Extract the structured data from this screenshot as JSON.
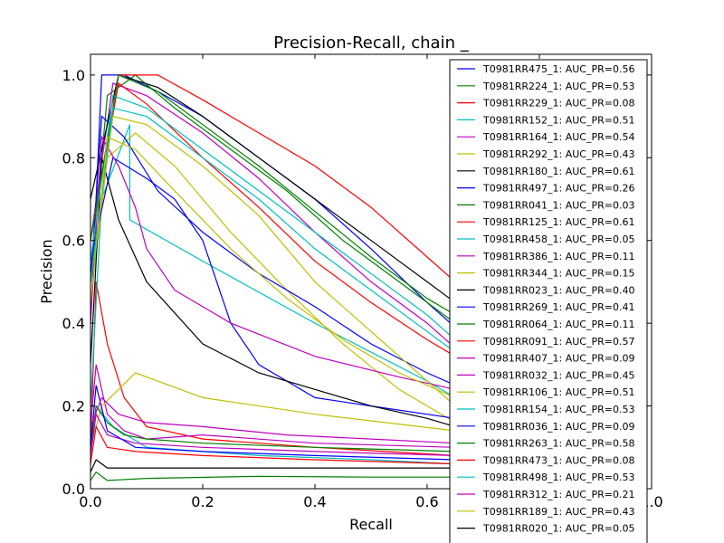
{
  "chart_data": {
    "type": "line",
    "title": "Precision-Recall, chain _",
    "xlabel": "Recall",
    "ylabel": "Precision",
    "xlim": [
      0.0,
      1.0
    ],
    "ylim": [
      0.0,
      1.05
    ],
    "xticks": [
      "0.0",
      "0.2",
      "0.4",
      "0.6",
      "0.8",
      "1.0"
    ],
    "yticks": [
      "0.0",
      "0.2",
      "0.4",
      "0.6",
      "0.8",
      "1.0"
    ],
    "grid": false,
    "legend_position": "top-right",
    "series": [
      {
        "name": "T0981RR475_1: AUC_PR=0.56",
        "color": "#0000ff",
        "x": [
          0.0,
          0.02,
          0.06,
          0.12,
          0.2,
          0.3,
          0.4,
          0.5,
          0.6,
          0.65
        ],
        "y": [
          0.4,
          1.0,
          1.0,
          0.96,
          0.9,
          0.8,
          0.7,
          0.58,
          0.45,
          0.39
        ]
      },
      {
        "name": "T0981RR224_1: AUC_PR=0.53",
        "color": "#008000",
        "x": [
          0.0,
          0.03,
          0.08,
          0.15,
          0.25,
          0.35,
          0.45,
          0.55,
          0.65
        ],
        "y": [
          0.5,
          0.95,
          1.0,
          0.92,
          0.82,
          0.72,
          0.6,
          0.5,
          0.4
        ]
      },
      {
        "name": "T0981RR229_1: AUC_PR=0.08",
        "color": "#ff0000",
        "x": [
          0.0,
          0.01,
          0.03,
          0.06,
          0.1,
          0.2,
          0.4,
          0.65
        ],
        "y": [
          0.1,
          0.5,
          0.35,
          0.22,
          0.15,
          0.12,
          0.1,
          0.08
        ]
      },
      {
        "name": "T0981RR152_1: AUC_PR=0.51",
        "color": "#00bfbf",
        "x": [
          0.0,
          0.02,
          0.07,
          0.07,
          0.2,
          0.4,
          0.6,
          0.65
        ],
        "y": [
          0.2,
          0.7,
          0.88,
          0.65,
          0.55,
          0.4,
          0.26,
          0.22
        ]
      },
      {
        "name": "T0981RR164_1: AUC_PR=0.54",
        "color": "#bf00bf",
        "x": [
          0.0,
          0.04,
          0.1,
          0.2,
          0.3,
          0.4,
          0.5,
          0.6,
          0.65
        ],
        "y": [
          0.6,
          0.98,
          0.95,
          0.86,
          0.75,
          0.62,
          0.5,
          0.4,
          0.34
        ]
      },
      {
        "name": "T0981RR292_1: AUC_PR=0.43",
        "color": "#bfbf00",
        "x": [
          0.0,
          0.03,
          0.08,
          0.15,
          0.25,
          0.35,
          0.45,
          0.55,
          0.65
        ],
        "y": [
          0.45,
          0.8,
          0.86,
          0.78,
          0.62,
          0.48,
          0.35,
          0.24,
          0.16
        ]
      },
      {
        "name": "T0981RR180_1: AUC_PR=0.61",
        "color": "#000000",
        "x": [
          0.0,
          0.05,
          0.12,
          0.2,
          0.3,
          0.4,
          0.5,
          0.6,
          0.65
        ],
        "y": [
          0.7,
          1.0,
          0.97,
          0.9,
          0.8,
          0.7,
          0.6,
          0.5,
          0.45
        ]
      },
      {
        "name": "T0981RR497_1: AUC_PR=0.26",
        "color": "#0000ff",
        "x": [
          0.0,
          0.04,
          0.1,
          0.15,
          0.2,
          0.25,
          0.3,
          0.4,
          0.5,
          0.65
        ],
        "y": [
          0.55,
          0.8,
          0.75,
          0.7,
          0.6,
          0.4,
          0.3,
          0.22,
          0.2,
          0.17
        ]
      },
      {
        "name": "T0981RR041_1: AUC_PR=0.03",
        "color": "#008000",
        "x": [
          0.0,
          0.01,
          0.03,
          0.1,
          0.3,
          0.5,
          0.65
        ],
        "y": [
          0.02,
          0.04,
          0.02,
          0.025,
          0.03,
          0.028,
          0.028
        ]
      },
      {
        "name": "T0981RR125_1: AUC_PR=0.61",
        "color": "#ff0000",
        "x": [
          0.0,
          0.05,
          0.12,
          0.2,
          0.3,
          0.4,
          0.5,
          0.6,
          0.65
        ],
        "y": [
          0.6,
          1.0,
          1.0,
          0.94,
          0.86,
          0.78,
          0.68,
          0.56,
          0.5
        ]
      },
      {
        "name": "T0981RR458_1: AUC_PR=0.05",
        "color": "#00bfbf",
        "x": [
          0.0,
          0.01,
          0.04,
          0.1,
          0.3,
          0.5,
          0.65
        ],
        "y": [
          0.08,
          0.2,
          0.15,
          0.1,
          0.08,
          0.07,
          0.06
        ]
      },
      {
        "name": "T0981RR386_1: AUC_PR=0.11",
        "color": "#bf00bf",
        "x": [
          0.0,
          0.01,
          0.03,
          0.06,
          0.1,
          0.2,
          0.4,
          0.65
        ],
        "y": [
          0.15,
          0.3,
          0.18,
          0.14,
          0.12,
          0.13,
          0.11,
          0.1
        ]
      },
      {
        "name": "T0981RR344_1: AUC_PR=0.15",
        "color": "#bfbf00",
        "x": [
          0.0,
          0.02,
          0.05,
          0.08,
          0.12,
          0.2,
          0.4,
          0.65
        ],
        "y": [
          0.1,
          0.2,
          0.24,
          0.28,
          0.26,
          0.22,
          0.18,
          0.14
        ]
      },
      {
        "name": "T0981RR023_1: AUC_PR=0.40",
        "color": "#000000",
        "x": [
          0.0,
          0.02,
          0.05,
          0.1,
          0.2,
          0.3,
          0.4,
          0.5,
          0.6,
          0.65
        ],
        "y": [
          0.3,
          0.8,
          0.65,
          0.5,
          0.35,
          0.28,
          0.24,
          0.2,
          0.17,
          0.15
        ]
      },
      {
        "name": "T0981RR269_1: AUC_PR=0.41",
        "color": "#0000ff",
        "x": [
          0.0,
          0.02,
          0.06,
          0.12,
          0.2,
          0.3,
          0.4,
          0.5,
          0.6,
          0.65
        ],
        "y": [
          0.5,
          0.9,
          0.85,
          0.72,
          0.62,
          0.52,
          0.44,
          0.35,
          0.28,
          0.25
        ]
      },
      {
        "name": "T0981RR064_1: AUC_PR=0.11",
        "color": "#008000",
        "x": [
          0.0,
          0.01,
          0.03,
          0.06,
          0.1,
          0.2,
          0.4,
          0.65
        ],
        "y": [
          0.1,
          0.2,
          0.16,
          0.13,
          0.12,
          0.11,
          0.1,
          0.09
        ]
      },
      {
        "name": "T0981RR091_1: AUC_PR=0.57",
        "color": "#ff0000",
        "x": [
          0.0,
          0.05,
          0.1,
          0.2,
          0.3,
          0.4,
          0.5,
          0.6,
          0.65
        ],
        "y": [
          0.6,
          0.98,
          0.93,
          0.8,
          0.68,
          0.55,
          0.45,
          0.36,
          0.32
        ]
      },
      {
        "name": "T0981RR407_1: AUC_PR=0.09",
        "color": "#bf00bf",
        "x": [
          0.0,
          0.01,
          0.03,
          0.08,
          0.2,
          0.4,
          0.65
        ],
        "y": [
          0.08,
          0.18,
          0.13,
          0.11,
          0.1,
          0.09,
          0.08
        ]
      },
      {
        "name": "T0981RR032_1: AUC_PR=0.45",
        "color": "#bf00bf",
        "x": [
          0.0,
          0.02,
          0.05,
          0.08,
          0.1,
          0.15,
          0.25,
          0.4,
          0.55,
          0.65
        ],
        "y": [
          0.4,
          0.85,
          0.78,
          0.68,
          0.58,
          0.48,
          0.4,
          0.32,
          0.27,
          0.24
        ]
      },
      {
        "name": "T0981RR106_1: AUC_PR=0.51",
        "color": "#bfbf00",
        "x": [
          0.0,
          0.04,
          0.1,
          0.2,
          0.3,
          0.4,
          0.5,
          0.6,
          0.65
        ],
        "y": [
          0.5,
          0.9,
          0.88,
          0.78,
          0.66,
          0.5,
          0.38,
          0.26,
          0.2
        ]
      },
      {
        "name": "T0981RR154_1: AUC_PR=0.53",
        "color": "#00bfbf",
        "x": [
          0.0,
          0.04,
          0.1,
          0.2,
          0.3,
          0.4,
          0.5,
          0.6,
          0.65
        ],
        "y": [
          0.55,
          0.95,
          0.92,
          0.82,
          0.72,
          0.62,
          0.52,
          0.42,
          0.36
        ]
      },
      {
        "name": "T0981RR036_1: AUC_PR=0.09",
        "color": "#0000ff",
        "x": [
          0.0,
          0.01,
          0.03,
          0.08,
          0.2,
          0.4,
          0.65
        ],
        "y": [
          0.1,
          0.25,
          0.14,
          0.1,
          0.09,
          0.08,
          0.07
        ]
      },
      {
        "name": "T0981RR263_1: AUC_PR=0.58",
        "color": "#008000",
        "x": [
          0.0,
          0.05,
          0.12,
          0.2,
          0.3,
          0.4,
          0.5,
          0.6,
          0.65
        ],
        "y": [
          0.6,
          1.0,
          0.96,
          0.88,
          0.78,
          0.67,
          0.56,
          0.46,
          0.42
        ]
      },
      {
        "name": "T0981RR473_1: AUC_PR=0.08",
        "color": "#ff0000",
        "x": [
          0.0,
          0.01,
          0.03,
          0.08,
          0.2,
          0.4,
          0.65
        ],
        "y": [
          0.06,
          0.15,
          0.1,
          0.09,
          0.08,
          0.07,
          0.06
        ]
      },
      {
        "name": "T0981RR498_1: AUC_PR=0.53",
        "color": "#00bfbf",
        "x": [
          0.0,
          0.04,
          0.1,
          0.2,
          0.3,
          0.4,
          0.5,
          0.6,
          0.65
        ],
        "y": [
          0.5,
          0.92,
          0.9,
          0.8,
          0.7,
          0.58,
          0.48,
          0.38,
          0.33
        ]
      },
      {
        "name": "T0981RR312_1: AUC_PR=0.21",
        "color": "#bf00bf",
        "x": [
          0.0,
          0.02,
          0.05,
          0.1,
          0.2,
          0.35,
          0.5,
          0.65
        ],
        "y": [
          0.15,
          0.22,
          0.18,
          0.16,
          0.15,
          0.13,
          0.12,
          0.11
        ]
      },
      {
        "name": "T0981RR189_1: AUC_PR=0.43",
        "color": "#bfbf00",
        "x": [
          0.0,
          0.03,
          0.08,
          0.15,
          0.25,
          0.35,
          0.45,
          0.55,
          0.65
        ],
        "y": [
          0.45,
          0.85,
          0.82,
          0.72,
          0.58,
          0.46,
          0.36,
          0.28,
          0.22
        ]
      },
      {
        "name": "T0981RR020_1: AUC_PR=0.05",
        "color": "#000000",
        "x": [
          0.0,
          0.01,
          0.03,
          0.1,
          0.3,
          0.5,
          0.65
        ],
        "y": [
          0.04,
          0.07,
          0.05,
          0.05,
          0.05,
          0.05,
          0.05
        ]
      }
    ]
  }
}
